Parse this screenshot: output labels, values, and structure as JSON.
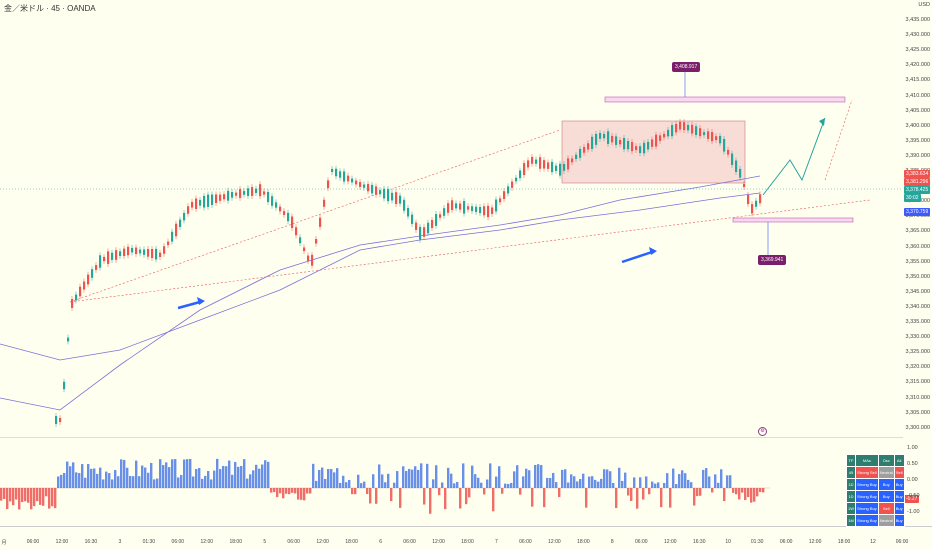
{
  "header": {
    "title": "金／米ドル · 45 · OANDA"
  },
  "colors": {
    "up": "#26a69a",
    "down": "#ef5350",
    "ma": "#7d6fd8",
    "box": "#f3c7c7",
    "bar_pos": "#4e7ce6",
    "bar_neg": "#ef5350",
    "callout": "#7b1f6a",
    "current": "#26a69a",
    "ma_label": "#3d5afe"
  },
  "price_axis": {
    "currency": "USD",
    "ticks": [
      "3,435.000",
      "3,430.000",
      "3,425.000",
      "3,420.000",
      "3,415.000",
      "3,410.000",
      "3,405.000",
      "3,400.000",
      "3,395.000",
      "3,390.000",
      "3,385.000",
      "3,380.000",
      "3,375.000",
      "3,370.000",
      "3,365.000",
      "3,360.000",
      "3,355.000",
      "3,350.000",
      "3,345.000",
      "3,340.000",
      "3,335.000",
      "3,330.000",
      "3,325.000",
      "3,320.000",
      "3,315.000",
      "3,310.000",
      "3,305.000",
      "3,300.000"
    ],
    "labels": {
      "a": "3,383.634",
      "b": "3,381.296",
      "current": "3,378.425",
      "countdown": "30:02",
      "ma": "3,370.759"
    }
  },
  "callouts": {
    "top": "3,408.917",
    "bottom": "3,369.941"
  },
  "osc_axis": [
    "1.00",
    "0.50",
    "0.00",
    "-0.50",
    "-1.00"
  ],
  "osc_current": "-0.27",
  "time_axis": [
    "月",
    "06:00",
    "12:00",
    "16:30",
    "3",
    "01:30",
    "06:00",
    "12:00",
    "18:00",
    "5",
    "06:00",
    "12:00",
    "18:00",
    "6",
    "06:00",
    "12:00",
    "18:00",
    "7",
    "06:00",
    "12:00",
    "18:00",
    "8",
    "06:00",
    "12:00",
    "16:30",
    "10",
    "01:30",
    "06:00",
    "12:00",
    "18:00",
    "12",
    "06:00"
  ],
  "panel": {
    "header": [
      "TF",
      "MAs",
      "Osc",
      "All"
    ],
    "rows": [
      [
        "45",
        "Strong Sell",
        "Neutral",
        "Sell"
      ],
      [
        "1D",
        "Strong Buy",
        "Buy",
        "Buy"
      ],
      [
        "1D",
        "Strong Buy",
        "Buy",
        "Buy"
      ],
      [
        "1W",
        "Strong Buy",
        "Sell",
        "Buy"
      ],
      [
        "1M",
        "Strong Buy",
        "Neutral",
        "Buy"
      ]
    ]
  }
}
